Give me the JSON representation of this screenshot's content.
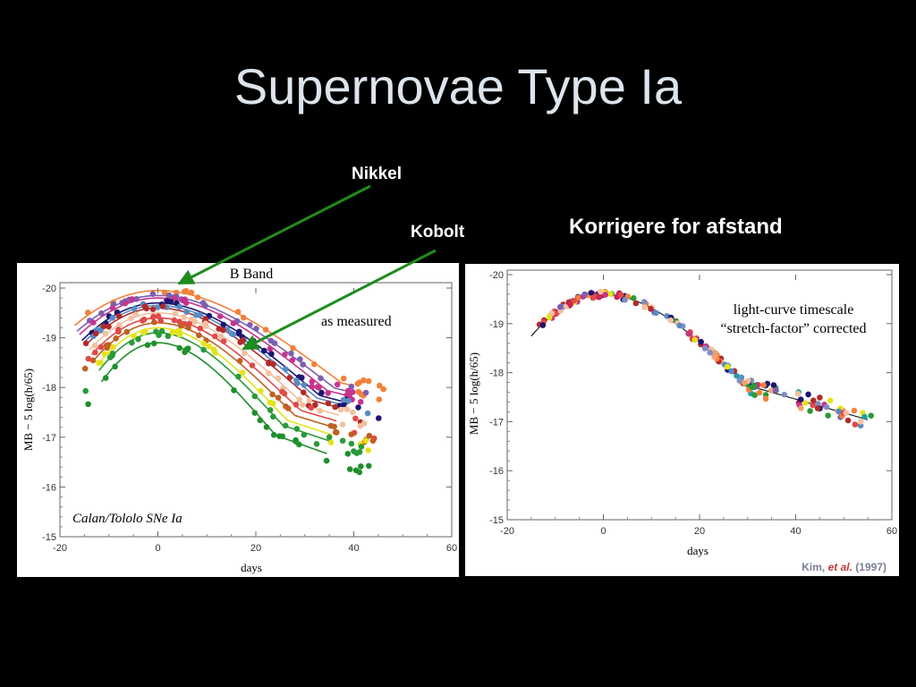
{
  "slide": {
    "title": "Supernovae Type Ia",
    "nikkel_label": "Nikkel",
    "kobolt_label": "Kobolt",
    "correct_label": "Korrigere for afstand"
  },
  "colors": {
    "background": "#000000",
    "title": "#dde4ec",
    "arrow": "#1e8c1e"
  },
  "chart_data": [
    {
      "type": "scatter",
      "title": "B Band",
      "annotation": "as measured",
      "sample_label": "Calan/Tololo SNe Ia",
      "xlabel": "days",
      "ylabel": "MB − 5 log(h/65)",
      "xlim": [
        -20,
        60
      ],
      "ylim": [
        -15,
        -20
      ],
      "xticks": [
        "-20",
        "0",
        "20",
        "40",
        "60"
      ],
      "yticks": [
        "-20",
        "-19",
        "-18",
        "-17",
        "-16",
        "-15"
      ],
      "template_curves": [
        {
          "peak": -19.95,
          "stretch": 1.25,
          "color": "#f2813a"
        },
        {
          "peak": -19.85,
          "stretch": 1.2,
          "color": "#7c5fb0"
        },
        {
          "peak": -19.8,
          "stretch": 1.15,
          "color": "#c7338f"
        },
        {
          "peak": -19.7,
          "stretch": 1.1,
          "color": "#1c1670"
        },
        {
          "peak": -19.65,
          "stretch": 1.08,
          "color": "#5a8ac4"
        },
        {
          "peak": -19.6,
          "stretch": 1.05,
          "color": "#b22a2a"
        },
        {
          "peak": -19.5,
          "stretch": 1.0,
          "color": "#f4c0a0"
        },
        {
          "peak": -19.4,
          "stretch": 0.97,
          "color": "#e04a4a"
        },
        {
          "peak": -19.3,
          "stretch": 0.93,
          "color": "#c06020"
        },
        {
          "peak": -19.2,
          "stretch": 0.88,
          "color": "#e3e31a"
        },
        {
          "peak": -19.1,
          "stretch": 0.85,
          "color": "#2a9a3a"
        },
        {
          "peak": -18.9,
          "stretch": 0.8,
          "color": "#1f8f2a"
        }
      ]
    },
    {
      "type": "scatter",
      "annotation_line1": "light-curve timescale",
      "annotation_line2": "“stretch-factor” corrected",
      "xlabel": "days",
      "ylabel": "MB − 5 log(h/65)",
      "xlim": [
        -20,
        60
      ],
      "ylim": [
        -15,
        -20
      ],
      "xticks": [
        "-20",
        "0",
        "20",
        "40",
        "60"
      ],
      "yticks": [
        "-20",
        "-19",
        "-18",
        "-17",
        "-16",
        "-15"
      ],
      "template_curves": [
        {
          "peak": -19.6,
          "stretch": 1.0,
          "color": "#222222"
        }
      ]
    }
  ],
  "credit": {
    "prefix": "Kim, ",
    "etal": "et al.",
    "year": " (1997)"
  }
}
